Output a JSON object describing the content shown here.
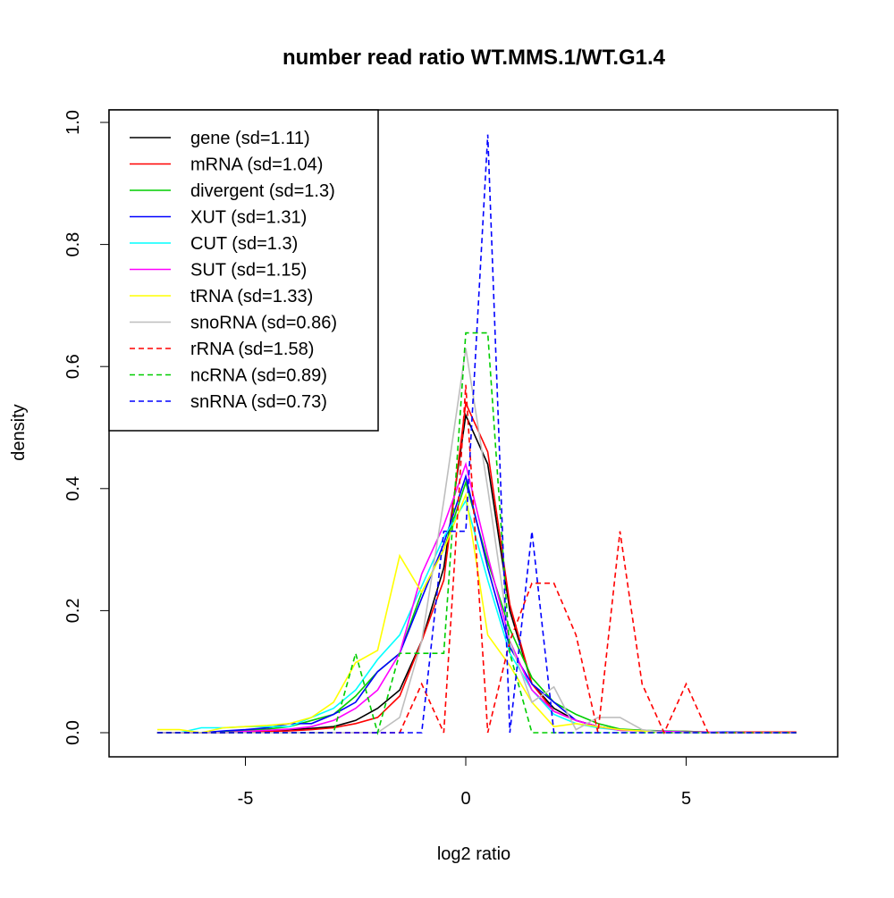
{
  "chart_data": {
    "type": "line",
    "title": "number read ratio WT.MMS.1/WT.G1.4",
    "xlabel": "log2 ratio",
    "ylabel": "density",
    "xlim": [
      -8.09,
      8.44
    ],
    "ylim": [
      -0.04,
      1.02
    ],
    "xticks": [
      -5,
      0,
      5
    ],
    "xtick_labels": [
      "-5",
      "0",
      "5"
    ],
    "yticks": [
      0,
      0.2,
      0.4,
      0.6,
      0.8,
      1.0
    ],
    "ytick_labels": [
      "0.0",
      "0.2",
      "0.4",
      "0.6",
      "0.8",
      "1.0"
    ],
    "grid": false,
    "legend_position": "top-left",
    "x": [
      -7,
      -6.5,
      -6,
      -5.5,
      -5,
      -4.5,
      -4,
      -3.5,
      -3,
      -2.5,
      -2,
      -1.5,
      -1,
      -0.5,
      0,
      0.5,
      1,
      1.5,
      2,
      2.5,
      3,
      3.5,
      4,
      4.5,
      5,
      5.5,
      6,
      6.5,
      7,
      7.5
    ],
    "series": [
      {
        "name": "gene (sd=1.11)",
        "color": "#000000",
        "dash": false,
        "values": [
          0,
          0,
          0,
          0,
          0.002,
          0.003,
          0.005,
          0.007,
          0.01,
          0.02,
          0.04,
          0.07,
          0.15,
          0.27,
          0.52,
          0.44,
          0.2,
          0.08,
          0.04,
          0.02,
          0.01,
          0.005,
          0.003,
          0.002,
          0.001,
          0.001,
          0.001,
          0,
          0,
          0
        ]
      },
      {
        "name": "mRNA (sd=1.04)",
        "color": "#ff0000",
        "dash": false,
        "values": [
          0,
          0,
          0,
          0,
          0.001,
          0.002,
          0.003,
          0.005,
          0.008,
          0.015,
          0.025,
          0.06,
          0.15,
          0.25,
          0.54,
          0.46,
          0.21,
          0.08,
          0.035,
          0.02,
          0.01,
          0.004,
          0.003,
          0.002,
          0.002,
          0.001,
          0.001,
          0.001,
          0.001,
          0.001
        ]
      },
      {
        "name": "divergent (sd=1.3)",
        "color": "#00cd00",
        "dash": false,
        "values": [
          0,
          0,
          0,
          0.002,
          0.004,
          0.006,
          0.01,
          0.02,
          0.03,
          0.06,
          0.1,
          0.13,
          0.23,
          0.3,
          0.41,
          0.28,
          0.17,
          0.09,
          0.05,
          0.03,
          0.015,
          0.006,
          0.004,
          0.003,
          0.002,
          0.001,
          0.001,
          0,
          0,
          0
        ]
      },
      {
        "name": "XUT (sd=1.31)",
        "color": "#0000ff",
        "dash": false,
        "values": [
          0,
          0,
          0,
          0.003,
          0.005,
          0.008,
          0.015,
          0.015,
          0.03,
          0.05,
          0.1,
          0.13,
          0.22,
          0.31,
          0.42,
          0.27,
          0.14,
          0.08,
          0.05,
          0.02,
          0.01,
          0.005,
          0.003,
          0.002,
          0.001,
          0.001,
          0.001,
          0,
          0,
          0
        ]
      },
      {
        "name": "CUT (sd=1.3)",
        "color": "#00ffff",
        "dash": false,
        "values": [
          0,
          0,
          0.008,
          0.008,
          0.01,
          0.01,
          0.01,
          0.025,
          0.04,
          0.07,
          0.12,
          0.16,
          0.24,
          0.32,
          0.38,
          0.25,
          0.13,
          0.07,
          0.03,
          0.015,
          0.008,
          0.004,
          0.003,
          0.002,
          0.001,
          0.001,
          0,
          0,
          0,
          0
        ]
      },
      {
        "name": "SUT (sd=1.15)",
        "color": "#ff00ff",
        "dash": false,
        "values": [
          0,
          0,
          0,
          0,
          0.002,
          0.004,
          0.006,
          0.01,
          0.02,
          0.04,
          0.07,
          0.13,
          0.26,
          0.34,
          0.44,
          0.29,
          0.15,
          0.07,
          0.035,
          0.02,
          0.01,
          0.004,
          0.003,
          0.002,
          0.001,
          0.001,
          0,
          0,
          0,
          0
        ]
      },
      {
        "name": "tRNA (sd=1.33)",
        "color": "#ffff00",
        "dash": false,
        "values": [
          0.005,
          0.005,
          0,
          0.008,
          0.01,
          0.012,
          0.015,
          0.025,
          0.05,
          0.115,
          0.135,
          0.29,
          0.23,
          0.3,
          0.39,
          0.16,
          0.11,
          0.05,
          0.01,
          0.015,
          0.01,
          0.005,
          0.003,
          0,
          0,
          0,
          0,
          0,
          0,
          0
        ]
      },
      {
        "name": "snoRNA (sd=0.86)",
        "color": "#bebebe",
        "dash": false,
        "values": [
          0,
          0,
          0,
          0,
          0,
          0,
          0,
          0,
          0,
          0,
          0,
          0.025,
          0.15,
          0.38,
          0.63,
          0.4,
          0.15,
          0.05,
          0.075,
          0.005,
          0.025,
          0.025,
          0.005,
          0,
          0,
          0,
          0,
          0,
          0,
          0
        ]
      },
      {
        "name": "rRNA (sd=1.58)",
        "color": "#ff0000",
        "dash": true,
        "values": [
          0,
          0,
          0,
          0,
          0,
          0,
          0,
          0,
          0,
          0,
          0,
          0,
          0.08,
          0,
          0.57,
          0,
          0.15,
          0.245,
          0.245,
          0.16,
          0,
          0.33,
          0.08,
          0,
          0.08,
          0,
          0,
          0,
          0,
          0
        ]
      },
      {
        "name": "ncRNA (sd=0.89)",
        "color": "#00cd00",
        "dash": true,
        "values": [
          0,
          0,
          0,
          0,
          0,
          0,
          0,
          0,
          0,
          0.13,
          0,
          0.13,
          0.13,
          0.13,
          0.655,
          0.655,
          0.13,
          0,
          0,
          0,
          0,
          0,
          0,
          0,
          0,
          0,
          0,
          0,
          0,
          0
        ]
      },
      {
        "name": "snRNA (sd=0.73)",
        "color": "#0000ff",
        "dash": true,
        "values": [
          0,
          0,
          0,
          0,
          0,
          0,
          0,
          0,
          0,
          0,
          0,
          0,
          0,
          0.33,
          0.33,
          0.98,
          0,
          0.33,
          0,
          0,
          0,
          0,
          0,
          0,
          0,
          0,
          0,
          0,
          0,
          0
        ]
      }
    ]
  }
}
